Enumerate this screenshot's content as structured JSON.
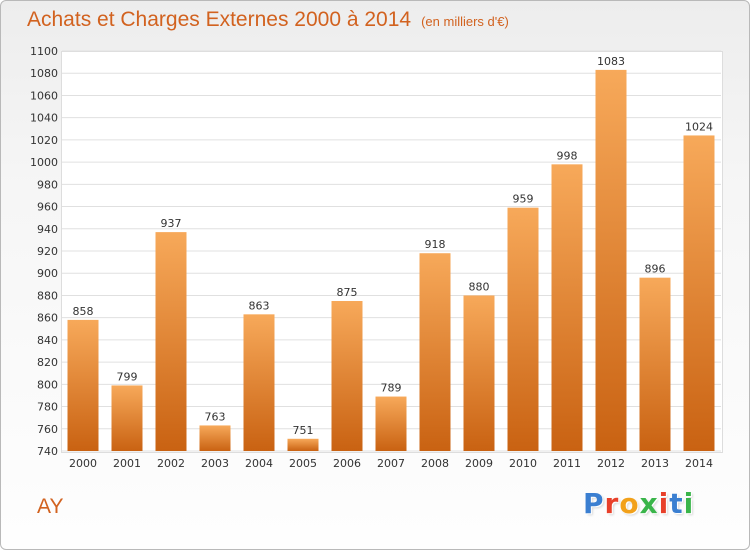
{
  "header": {
    "title": "Achats et Charges Externes 2000 à 2014",
    "unit": "(en milliers d'€)"
  },
  "footer": {
    "city": "AY",
    "logo": "Proxiti",
    "logo_colors": [
      "#3b7fd1",
      "#e8402a",
      "#f2a11a",
      "#3ab54a",
      "#e8402a",
      "#3b7fd1",
      "#3ab54a"
    ]
  },
  "colors": {
    "title": "#d2621f",
    "bar_top": "#f7a95a",
    "bar_bottom": "#c96212",
    "grid": "#e0e0e0"
  },
  "chart_data": {
    "type": "bar",
    "title": "Achats et Charges Externes 2000 à 2014",
    "subtitle": "(en milliers d'€)",
    "categories": [
      "2000",
      "2001",
      "2002",
      "2003",
      "2004",
      "2005",
      "2006",
      "2007",
      "2008",
      "2009",
      "2010",
      "2011",
      "2012",
      "2013",
      "2014"
    ],
    "values": [
      858,
      799,
      937,
      763,
      863,
      751,
      875,
      789,
      918,
      880,
      959,
      998,
      1083,
      896,
      1024
    ],
    "ylim": [
      740,
      1100
    ],
    "yticks": [
      740,
      760,
      780,
      800,
      820,
      840,
      860,
      880,
      900,
      920,
      940,
      960,
      980,
      1000,
      1020,
      1040,
      1060,
      1080,
      1100
    ],
    "grid": true,
    "legend": "none",
    "data_labels": true
  }
}
